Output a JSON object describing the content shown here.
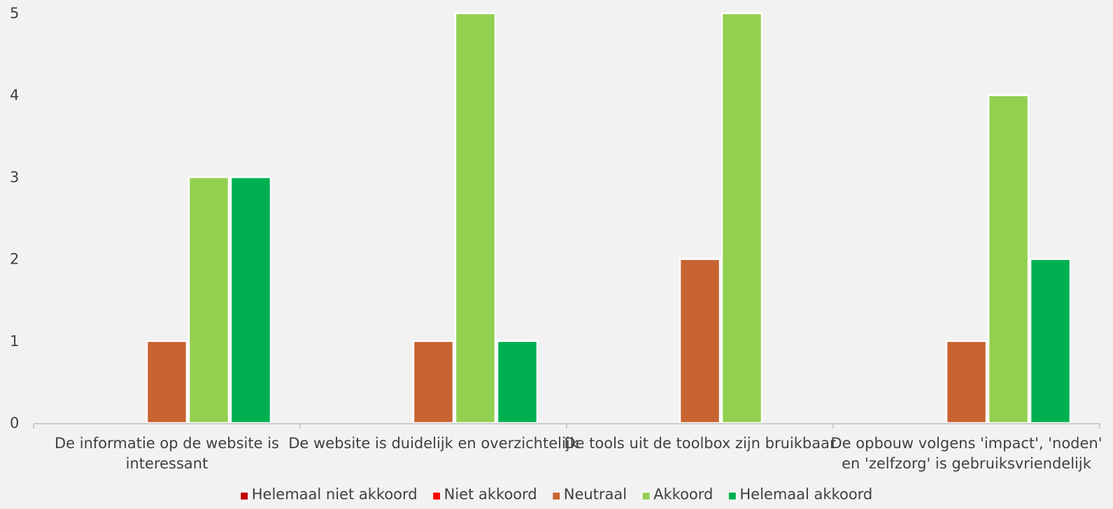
{
  "chart_data": {
    "type": "bar",
    "categories": [
      [
        "De informatie op de website is",
        "interessant"
      ],
      [
        "De website is duidelijk en overzichtelijk"
      ],
      [
        "De tools uit de toolbox zijn bruikbaar"
      ],
      [
        "De opbouw volgens 'impact', 'noden'",
        "en 'zelfzorg' is gebruiksvriendelijk"
      ]
    ],
    "series": [
      {
        "name": "Helemaal niet akkoord",
        "color": "#c00000",
        "values": [
          0,
          0,
          0,
          0
        ]
      },
      {
        "name": "Niet akkoord",
        "color": "#ff0000",
        "values": [
          0,
          0,
          0,
          0
        ]
      },
      {
        "name": "Neutraal",
        "color": "#c86432",
        "values": [
          1,
          1,
          2,
          1
        ]
      },
      {
        "name": "Akkoord",
        "color": "#92d050",
        "values": [
          3,
          5,
          5,
          4
        ]
      },
      {
        "name": "Helemaal akkoord",
        "color": "#00b050",
        "values": [
          3,
          1,
          0,
          2
        ]
      }
    ],
    "ylim": [
      0,
      5
    ],
    "yticks": [
      "0",
      "1",
      "2",
      "3",
      "4",
      "5"
    ],
    "legend_position": "bottom",
    "grid": false
  }
}
